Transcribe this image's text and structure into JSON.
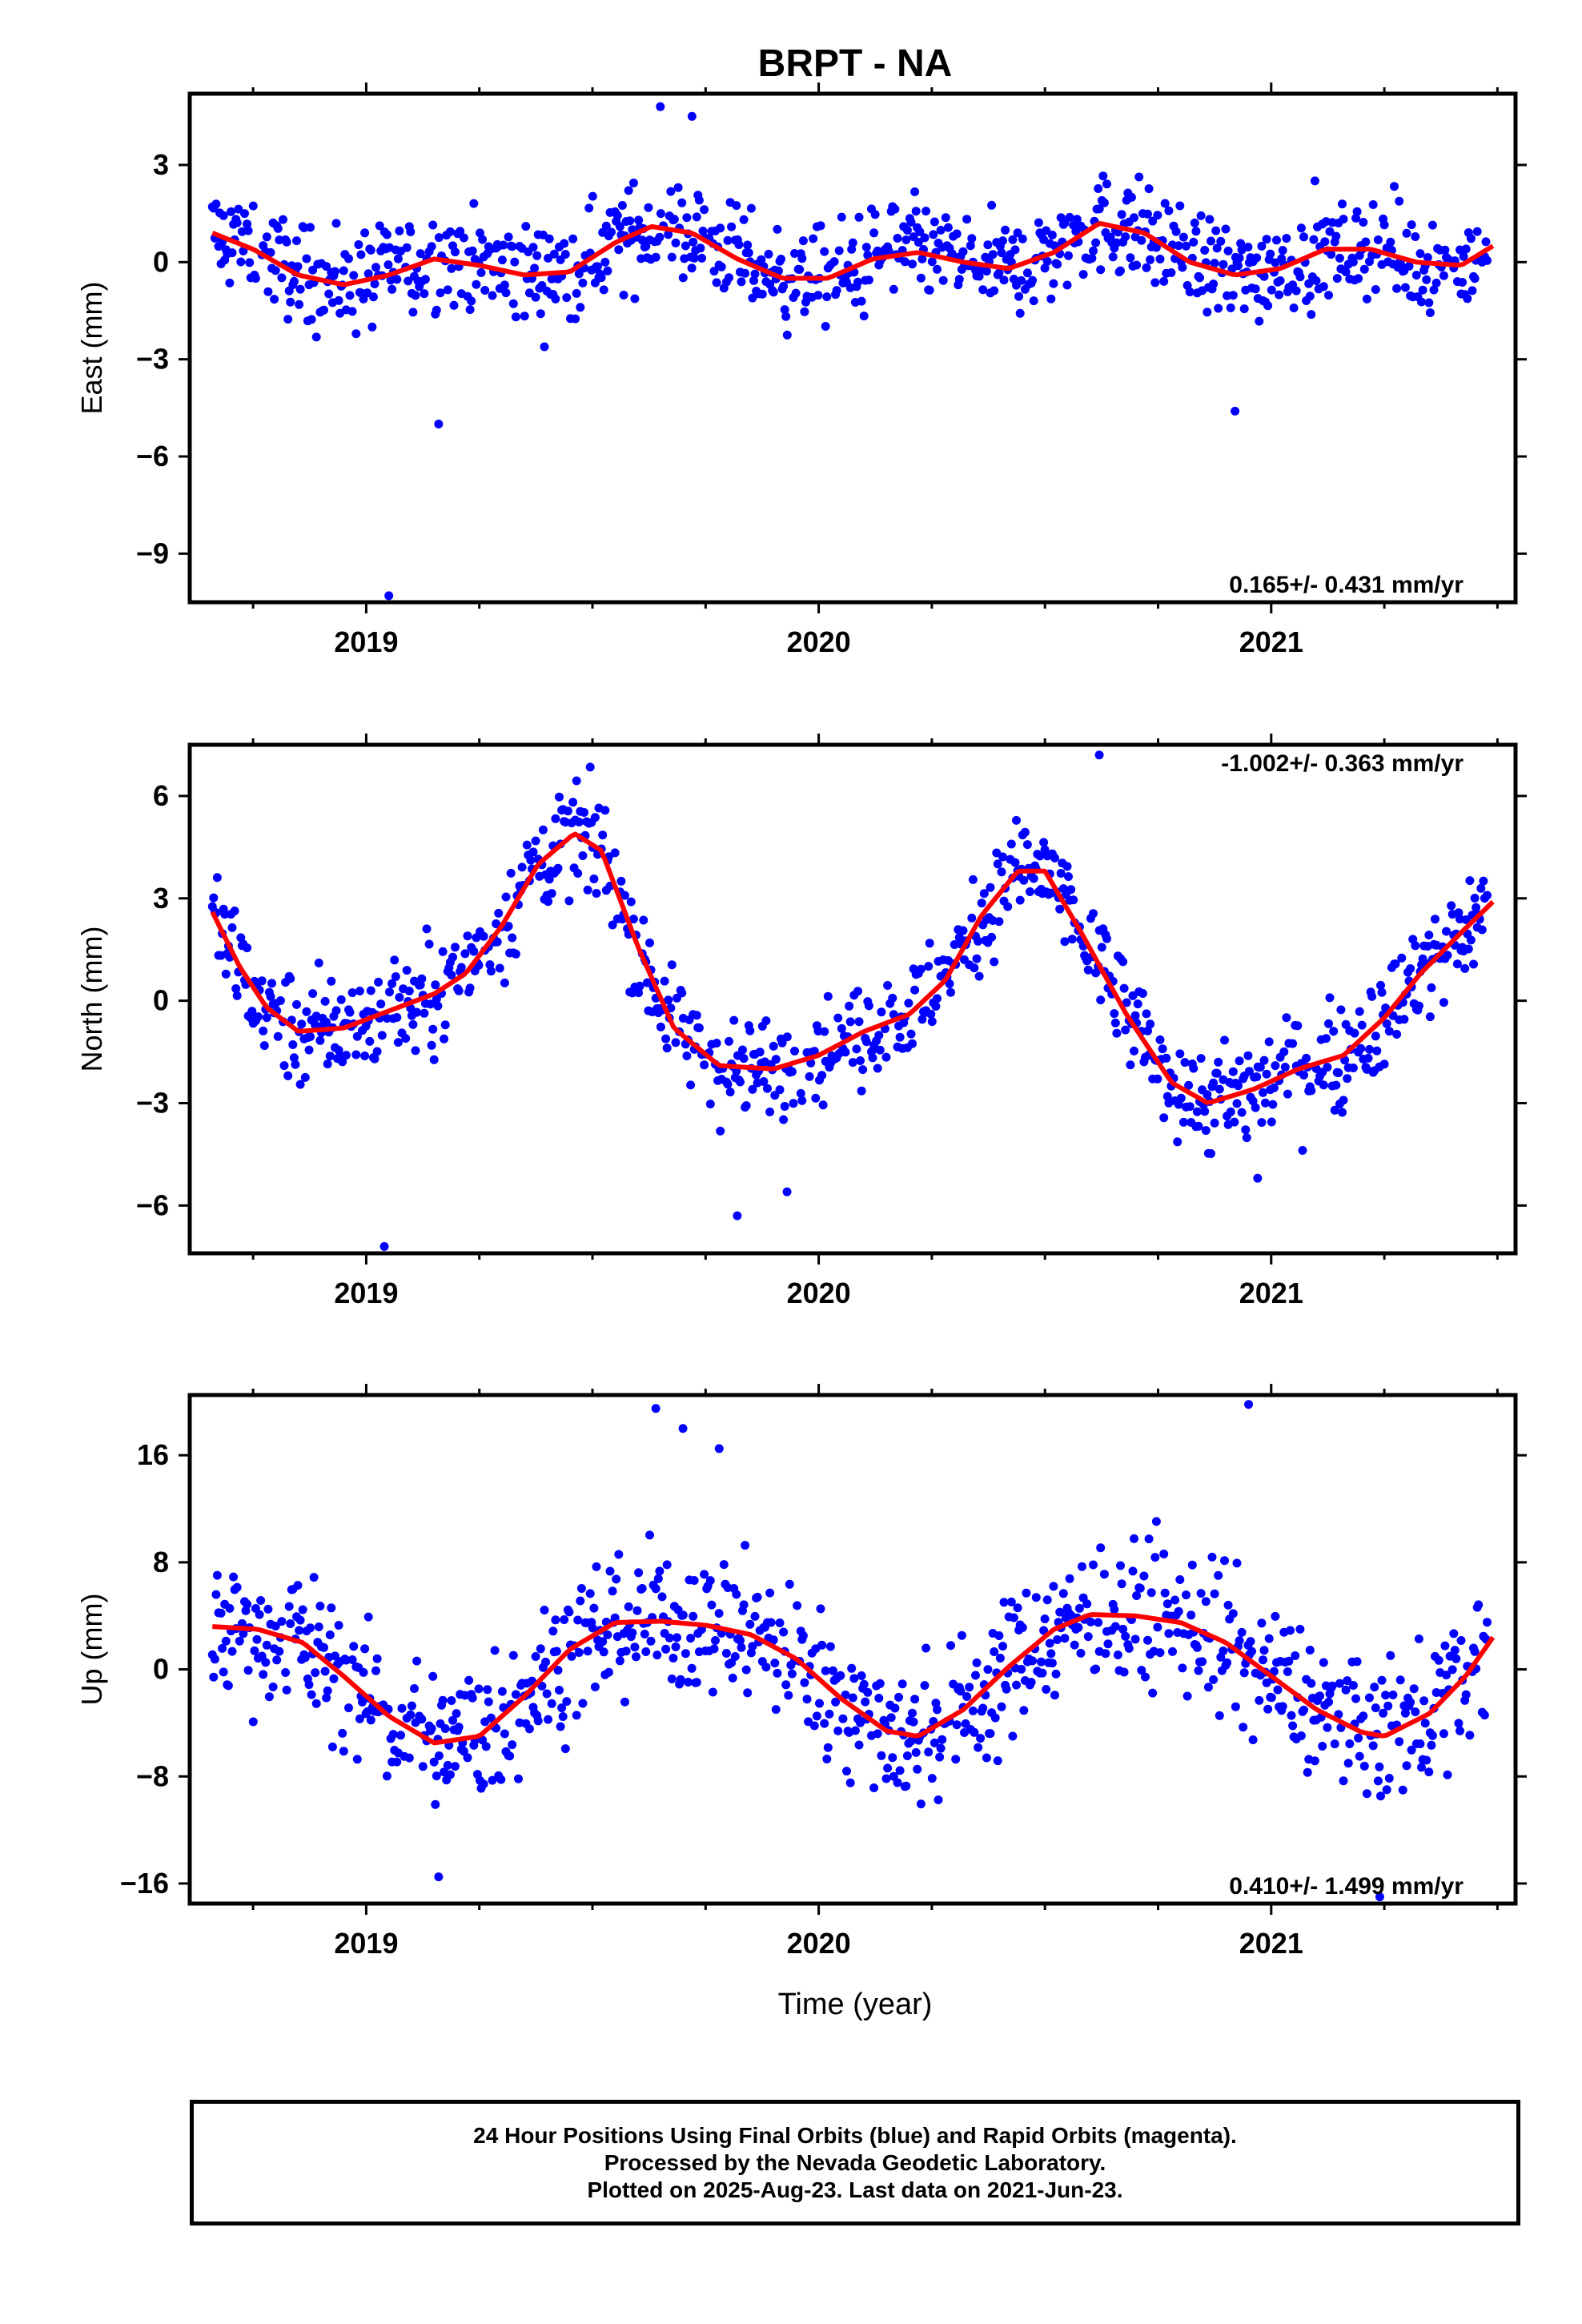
{
  "title": "BRPT - NA",
  "xlabel": "Time (year)",
  "footer": {
    "line1": "24 Hour Positions Using Final Orbits (blue) and Rapid Orbits (magenta).",
    "line2": "Processed by the Nevada Geodetic Laboratory.",
    "line3": "Plotted on 2025-Aug-23. Last data on 2021-Jun-23."
  },
  "colors": {
    "points": "#0000ff",
    "fit": "#ff0000",
    "frame": "#000000"
  },
  "chart_data": [
    {
      "type": "scatter",
      "ylabel": "East (mm)",
      "rate_label": "0.165+/- 0.431 mm/yr",
      "rate_position": "bottom-right",
      "xlim": [
        2018.61,
        2021.54
      ],
      "ylim": [
        -10.5,
        5.2
      ],
      "xticks": [
        2019,
        2020,
        2021
      ],
      "yticks": [
        -9,
        -6,
        -3,
        0,
        3
      ],
      "trend": [
        [
          2018.66,
          0.9
        ],
        [
          2018.75,
          0.4
        ],
        [
          2018.85,
          -0.4
        ],
        [
          2018.95,
          -0.7
        ],
        [
          2019.05,
          -0.4
        ],
        [
          2019.15,
          0.1
        ],
        [
          2019.25,
          -0.1
        ],
        [
          2019.35,
          -0.4
        ],
        [
          2019.45,
          -0.3
        ],
        [
          2019.55,
          0.6
        ],
        [
          2019.63,
          1.1
        ],
        [
          2019.72,
          0.9
        ],
        [
          2019.82,
          0.1
        ],
        [
          2019.92,
          -0.5
        ],
        [
          2020.02,
          -0.5
        ],
        [
          2020.12,
          0.1
        ],
        [
          2020.22,
          0.3
        ],
        [
          2020.32,
          0.0
        ],
        [
          2020.42,
          -0.2
        ],
        [
          2020.52,
          0.3
        ],
        [
          2020.62,
          1.2
        ],
        [
          2020.72,
          0.9
        ],
        [
          2020.82,
          0.0
        ],
        [
          2020.92,
          -0.4
        ],
        [
          2021.02,
          -0.2
        ],
        [
          2021.12,
          0.4
        ],
        [
          2021.22,
          0.4
        ],
        [
          2021.32,
          0.0
        ],
        [
          2021.42,
          -0.1
        ],
        [
          2021.49,
          0.5
        ]
      ],
      "outliers": [
        [
          2019.05,
          -10.3
        ],
        [
          2019.16,
          -5.0
        ],
        [
          2020.92,
          -4.6
        ],
        [
          2019.65,
          4.8
        ],
        [
          2019.72,
          4.5
        ]
      ]
    },
    {
      "type": "scatter",
      "ylabel": "North (mm)",
      "rate_label": "-1.002+/- 0.363 mm/yr",
      "rate_position": "top-right",
      "xlim": [
        2018.61,
        2021.54
      ],
      "ylim": [
        -7.4,
        7.5
      ],
      "xticks": [
        2019,
        2020,
        2021
      ],
      "yticks": [
        -6,
        -3,
        0,
        3,
        6
      ],
      "trend": [
        [
          2018.66,
          2.6
        ],
        [
          2018.72,
          1.0
        ],
        [
          2018.78,
          -0.2
        ],
        [
          2018.85,
          -0.9
        ],
        [
          2018.95,
          -0.8
        ],
        [
          2019.05,
          -0.3
        ],
        [
          2019.15,
          0.2
        ],
        [
          2019.22,
          0.8
        ],
        [
          2019.3,
          2.2
        ],
        [
          2019.38,
          4.0
        ],
        [
          2019.46,
          4.9
        ],
        [
          2019.52,
          4.4
        ],
        [
          2019.6,
          1.6
        ],
        [
          2019.68,
          -0.8
        ],
        [
          2019.78,
          -1.9
        ],
        [
          2019.9,
          -2.0
        ],
        [
          2020.0,
          -1.6
        ],
        [
          2020.1,
          -0.9
        ],
        [
          2020.2,
          -0.4
        ],
        [
          2020.28,
          0.6
        ],
        [
          2020.36,
          2.5
        ],
        [
          2020.44,
          3.8
        ],
        [
          2020.5,
          3.8
        ],
        [
          2020.58,
          2.0
        ],
        [
          2020.68,
          -0.4
        ],
        [
          2020.78,
          -2.4
        ],
        [
          2020.86,
          -3.0
        ],
        [
          2020.96,
          -2.6
        ],
        [
          2021.06,
          -2.0
        ],
        [
          2021.16,
          -1.6
        ],
        [
          2021.25,
          -0.5
        ],
        [
          2021.33,
          0.8
        ],
        [
          2021.42,
          2.0
        ],
        [
          2021.49,
          2.9
        ]
      ],
      "outliers": [
        [
          2019.04,
          -7.2
        ],
        [
          2020.62,
          7.2
        ],
        [
          2019.82,
          -6.3
        ],
        [
          2019.93,
          -5.6
        ],
        [
          2020.97,
          -5.2
        ]
      ]
    },
    {
      "type": "scatter",
      "ylabel": "Up (mm)",
      "rate_label": "0.410+/- 1.499 mm/yr",
      "rate_position": "bottom-right",
      "xlim": [
        2018.61,
        2021.54
      ],
      "ylim": [
        -17.5,
        20.5
      ],
      "xticks": [
        2019,
        2020,
        2021
      ],
      "yticks": [
        -16,
        -8,
        0,
        8,
        16
      ],
      "trend": [
        [
          2018.66,
          3.2
        ],
        [
          2018.76,
          3.0
        ],
        [
          2018.86,
          2.0
        ],
        [
          2018.95,
          -0.5
        ],
        [
          2019.05,
          -3.5
        ],
        [
          2019.15,
          -5.5
        ],
        [
          2019.25,
          -5.0
        ],
        [
          2019.35,
          -2.0
        ],
        [
          2019.45,
          1.5
        ],
        [
          2019.55,
          3.5
        ],
        [
          2019.65,
          3.6
        ],
        [
          2019.75,
          3.3
        ],
        [
          2019.85,
          2.6
        ],
        [
          2019.95,
          0.8
        ],
        [
          2020.05,
          -2.2
        ],
        [
          2020.15,
          -4.6
        ],
        [
          2020.22,
          -5.0
        ],
        [
          2020.32,
          -3.0
        ],
        [
          2020.42,
          0.2
        ],
        [
          2020.52,
          3.0
        ],
        [
          2020.6,
          4.1
        ],
        [
          2020.7,
          4.0
        ],
        [
          2020.8,
          3.5
        ],
        [
          2020.9,
          2.0
        ],
        [
          2021.0,
          -0.5
        ],
        [
          2021.1,
          -3.0
        ],
        [
          2021.2,
          -4.7
        ],
        [
          2021.25,
          -5.0
        ],
        [
          2021.35,
          -3.3
        ],
        [
          2021.43,
          -0.5
        ],
        [
          2021.49,
          2.4
        ]
      ],
      "outliers": [
        [
          2019.16,
          -15.5
        ],
        [
          2019.64,
          19.5
        ],
        [
          2019.7,
          18.0
        ],
        [
          2019.78,
          16.5
        ],
        [
          2020.95,
          19.8
        ],
        [
          2021.24,
          -17.0
        ]
      ]
    }
  ]
}
